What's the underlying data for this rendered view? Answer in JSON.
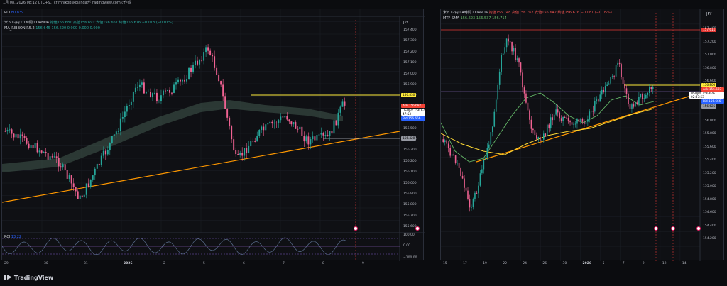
{
  "header": {
    "caption": "1月 08, 2026 08:12 UTC+9、crimnikobskojandaがTradingView.comで作成"
  },
  "left": {
    "rci_top_label": "RCI",
    "rci_top_value": "80.839",
    "title": "米ドル/円・1時間・OANDA",
    "ohlc": "始値156.681 高値156.691 安値156.661 終値156.676 −0.013 (−0.01%)",
    "ma_label": "MA_RIBBON R5.2",
    "ma_values": "156.645 156.620 0.000 0.000 0.000",
    "currency": "JPY",
    "price_ticks": [
      "157.400",
      "157.300",
      "157.200",
      "157.100",
      "157.000",
      "156.900",
      "156.800",
      "156.700",
      "156.600",
      "156.500",
      "156.400",
      "156.300",
      "156.200",
      "156.100",
      "156.000",
      "155.900",
      "155.800",
      "155.700",
      "155.600"
    ],
    "tags": {
      "resist": "156.830",
      "ask_label": "Ask",
      "ask": "156.687",
      "symbol": "USDJPY",
      "price": "156.676",
      "timer": "47:53",
      "bid_label": "Bid",
      "bid": "156.666",
      "support": "156.420"
    },
    "rci_label": "RCI",
    "rci_value": "13.22",
    "rci_ticks": [
      "100.00",
      "0.00",
      "−100.00"
    ],
    "time_ticks": [
      "29",
      "30",
      "31",
      "2026",
      "2",
      "5",
      "6",
      "7",
      "8",
      "9"
    ]
  },
  "right": {
    "title": "米ドル/円・4時間・OANDA",
    "ohlc": "始値156.748 高値156.762 安値156.642 終値156.676 −0.081 (−0.05%)",
    "mtf_label": "MTF-SMA",
    "mtf_values": "156.623 156.537 156.714",
    "currency": "JPY",
    "price_ticks": [
      "157.400",
      "157.200",
      "157.000",
      "156.800",
      "156.600",
      "156.400",
      "156.200",
      "156.000",
      "155.800",
      "155.600",
      "155.400",
      "155.200",
      "155.000",
      "154.800",
      "154.600",
      "154.400",
      "154.200"
    ],
    "tags": {
      "top": "157.611",
      "resist": "156.800",
      "ask_label": "Ask",
      "ask": "156.687",
      "symbol": "USDJPY",
      "price": "156.676",
      "timer": "02:47:53",
      "bid_label": "Bid",
      "bid": "156.666",
      "support": "156.625"
    },
    "time_ticks": [
      "15",
      "17",
      "19",
      "22",
      "24",
      "26",
      "30",
      "2026",
      "5",
      "7",
      "9",
      "12",
      "14"
    ]
  },
  "brand": {
    "name": "TradingView"
  },
  "colors": {
    "up": "#26a69a",
    "down": "#f06292",
    "trend": "#ff9800",
    "resist": "#ffeb3b",
    "ask": "#f44336",
    "bid": "#2962ff",
    "top": "#e53935"
  }
}
